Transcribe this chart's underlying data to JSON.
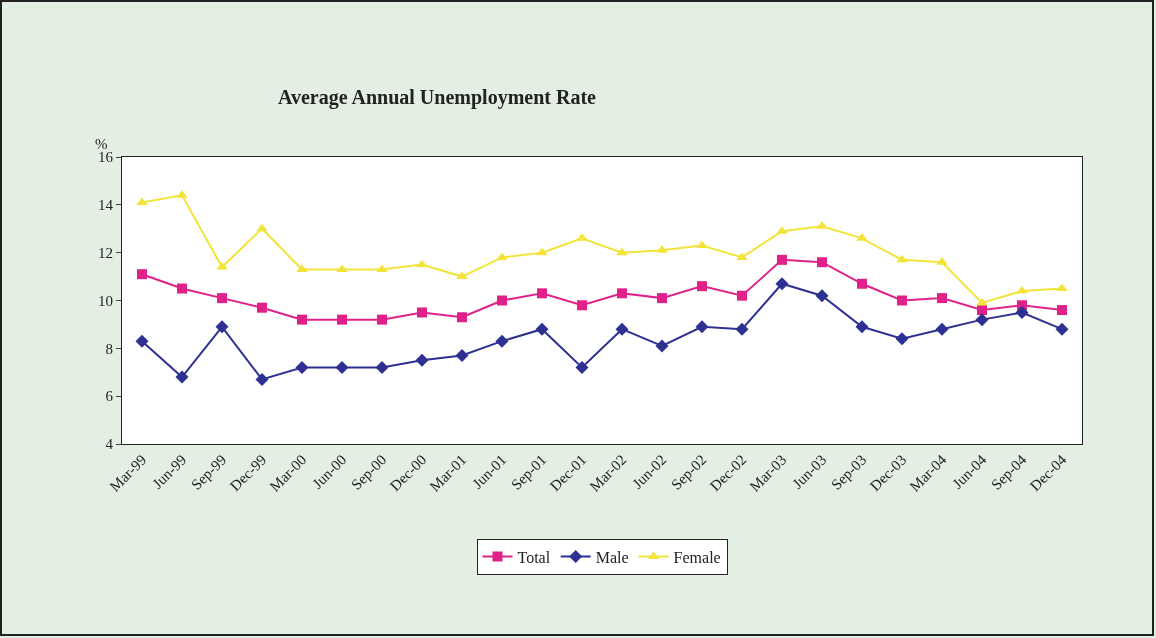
{
  "chart_data": {
    "type": "line",
    "title": "Average Annual Unemployment Rate",
    "ylabel": "%",
    "categories": [
      "Mar-99",
      "Jun-99",
      "Sep-99",
      "Dec-99",
      "Mar-00",
      "Jun-00",
      "Sep-00",
      "Dec-00",
      "Mar-01",
      "Jun-01",
      "Sep-01",
      "Dec-01",
      "Mar-02",
      "Jun-02",
      "Sep-02",
      "Dec-02",
      "Mar-03",
      "Jun-03",
      "Sep-03",
      "Dec-03",
      "Mar-04",
      "Jun-04",
      "Sep-04",
      "Dec-04"
    ],
    "series": [
      {
        "name": "Total",
        "color": "#e0218a",
        "marker": "square",
        "values": [
          11.1,
          10.5,
          10.1,
          9.7,
          9.2,
          9.2,
          9.2,
          9.5,
          9.3,
          10.0,
          10.3,
          9.8,
          10.3,
          10.1,
          10.6,
          10.2,
          11.7,
          11.6,
          10.7,
          10.0,
          10.1,
          9.6,
          9.8,
          9.6
        ]
      },
      {
        "name": "Male",
        "color": "#2e3192",
        "marker": "diamond",
        "values": [
          8.3,
          6.8,
          8.9,
          6.7,
          7.2,
          7.2,
          7.2,
          7.5,
          7.7,
          8.3,
          8.8,
          7.2,
          8.8,
          8.1,
          8.9,
          8.8,
          10.7,
          10.2,
          8.9,
          8.4,
          8.8,
          9.2,
          9.5,
          8.8
        ]
      },
      {
        "name": "Female",
        "color": "#f2e43a",
        "marker": "triangle",
        "values": [
          14.1,
          14.4,
          11.4,
          13.0,
          11.3,
          11.3,
          11.3,
          11.5,
          11.0,
          11.8,
          12.0,
          12.6,
          12.0,
          12.1,
          12.3,
          11.8,
          12.9,
          13.1,
          12.6,
          11.7,
          11.6,
          9.9,
          10.4,
          10.5
        ]
      }
    ],
    "ylim": [
      4,
      16
    ],
    "yticks": [
      4,
      6,
      8,
      10,
      12,
      14,
      16
    ],
    "grid": false,
    "legend": "bottom",
    "line_style": "solid"
  }
}
